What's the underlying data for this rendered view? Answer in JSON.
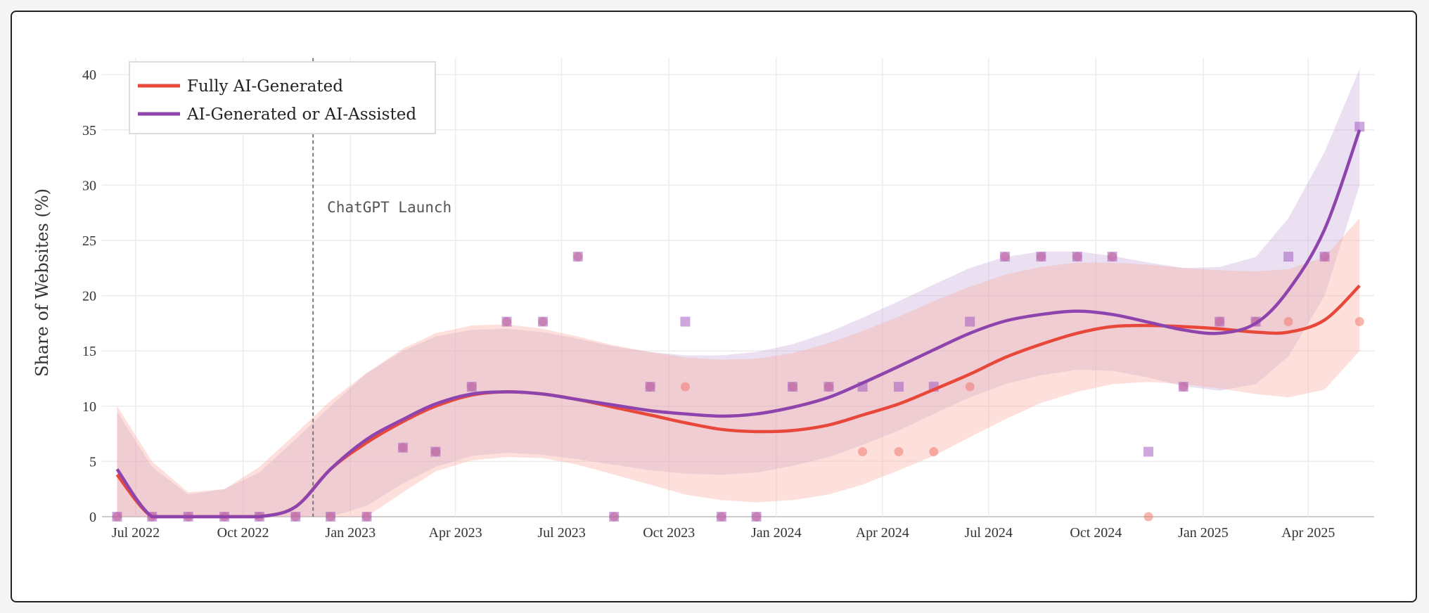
{
  "chart_data": {
    "type": "line",
    "xlabel": "",
    "ylabel": "Share of Websites (%)",
    "ylim": [
      0,
      42
    ],
    "yticks": [
      "0",
      "5",
      "10",
      "15",
      "20",
      "25",
      "30",
      "35",
      "40"
    ],
    "xticks": [
      {
        "date": "2022-07-01",
        "label": "Jul 2022"
      },
      {
        "date": "2022-10-01",
        "label": "Oct 2022"
      },
      {
        "date": "2023-01-01",
        "label": "Jan 2023"
      },
      {
        "date": "2023-04-01",
        "label": "Apr 2023"
      },
      {
        "date": "2023-07-01",
        "label": "Jul 2023"
      },
      {
        "date": "2023-10-01",
        "label": "Oct 2023"
      },
      {
        "date": "2024-01-01",
        "label": "Jan 2024"
      },
      {
        "date": "2024-04-01",
        "label": "Apr 2024"
      },
      {
        "date": "2024-07-01",
        "label": "Jul 2024"
      },
      {
        "date": "2024-10-01",
        "label": "Oct 2024"
      },
      {
        "date": "2025-01-01",
        "label": "Jan 2025"
      },
      {
        "date": "2025-04-01",
        "label": "Apr 2025"
      }
    ],
    "xlim": [
      "2022-06-01",
      "2025-06-15"
    ],
    "grid": true,
    "legend_position": "top-left",
    "annotation": {
      "date": "2022-11-30",
      "label": "ChatGPT Launch",
      "style": "dashed vertical line"
    },
    "x": [
      "2022-06-15",
      "2022-07-15",
      "2022-08-15",
      "2022-09-15",
      "2022-10-15",
      "2022-11-15",
      "2022-12-15",
      "2023-01-15",
      "2023-02-15",
      "2023-03-15",
      "2023-04-15",
      "2023-05-15",
      "2023-06-15",
      "2023-07-15",
      "2023-08-15",
      "2023-09-15",
      "2023-10-15",
      "2023-11-15",
      "2023-12-15",
      "2024-01-15",
      "2024-02-15",
      "2024-03-15",
      "2024-04-15",
      "2024-05-15",
      "2024-06-15",
      "2024-07-15",
      "2024-08-15",
      "2024-09-15",
      "2024-10-15",
      "2024-11-15",
      "2024-12-15",
      "2025-01-15",
      "2025-02-15",
      "2025-03-15",
      "2025-04-15",
      "2025-05-15"
    ],
    "series": [
      {
        "name": "Fully AI-Generated",
        "color": "#e8483a",
        "marker": "circle",
        "points": [
          0,
          0,
          0,
          0,
          0,
          0,
          0,
          0,
          6.25,
          5.88,
          11.76,
          17.65,
          17.65,
          23.53,
          0,
          11.76,
          11.76,
          0,
          0,
          11.76,
          11.76,
          5.88,
          5.88,
          5.88,
          11.76,
          23.53,
          23.53,
          23.53,
          23.53,
          0,
          11.76,
          17.65,
          17.65,
          17.65,
          23.53,
          17.65
        ],
        "trend": [
          3.8,
          0,
          0,
          0,
          0,
          0.9,
          4.3,
          6.7,
          8.6,
          10.0,
          11.0,
          11.3,
          11.1,
          10.6,
          9.9,
          9.2,
          8.5,
          7.9,
          7.7,
          7.8,
          8.3,
          9.2,
          10.2,
          11.5,
          12.9,
          14.4,
          15.6,
          16.6,
          17.2,
          17.3,
          17.2,
          17.0,
          16.7,
          16.7,
          17.8,
          20.9
        ],
        "band_lower": [
          0,
          0,
          0,
          0,
          0,
          0,
          0,
          0,
          2.2,
          4.1,
          5.1,
          5.4,
          5.3,
          4.7,
          3.8,
          2.9,
          2.0,
          1.5,
          1.3,
          1.5,
          2.0,
          2.9,
          4.2,
          5.5,
          7.2,
          8.8,
          10.3,
          11.3,
          12.0,
          12.2,
          12.0,
          11.6,
          11.1,
          10.8,
          11.5,
          15.0
        ],
        "band_upper": [
          10,
          5,
          2.2,
          2.5,
          4.5,
          7.5,
          10.5,
          13.0,
          15.2,
          16.6,
          17.3,
          17.4,
          17.0,
          16.3,
          15.5,
          14.9,
          14.4,
          14.2,
          14.3,
          14.8,
          15.7,
          16.8,
          18.1,
          19.5,
          20.8,
          21.9,
          22.6,
          23.0,
          23.0,
          22.8,
          22.5,
          22.3,
          22.2,
          22.4,
          23.5,
          27.0
        ]
      },
      {
        "name": "AI-Generated or AI-Assisted",
        "color": "#8e44ad",
        "marker": "square",
        "points": [
          0,
          0,
          0,
          0,
          0,
          0,
          0,
          0,
          6.25,
          5.88,
          11.76,
          17.65,
          17.65,
          23.53,
          0,
          11.76,
          17.65,
          0,
          0,
          11.76,
          11.76,
          11.76,
          11.76,
          11.76,
          17.65,
          23.53,
          23.53,
          23.53,
          23.53,
          5.88,
          11.76,
          17.65,
          17.65,
          23.53,
          23.53,
          35.29
        ],
        "trend": [
          4.3,
          0,
          0,
          0,
          0,
          0.9,
          4.3,
          7.0,
          8.8,
          10.2,
          11.1,
          11.3,
          11.1,
          10.6,
          10.1,
          9.6,
          9.3,
          9.1,
          9.3,
          9.9,
          10.8,
          12.1,
          13.6,
          15.1,
          16.6,
          17.7,
          18.3,
          18.6,
          18.3,
          17.6,
          16.9,
          16.6,
          17.5,
          20.5,
          26.0,
          35.0
        ],
        "band_lower": [
          0,
          0,
          0,
          0,
          0,
          0,
          0,
          1.0,
          3.0,
          4.5,
          5.5,
          5.8,
          5.6,
          5.2,
          4.7,
          4.2,
          3.9,
          3.8,
          4.0,
          4.6,
          5.4,
          6.5,
          7.8,
          9.3,
          10.8,
          12.0,
          12.8,
          13.3,
          13.2,
          12.6,
          11.8,
          11.4,
          12.0,
          14.5,
          20.0,
          30.0
        ],
        "band_upper": [
          9.5,
          4.5,
          2,
          2.5,
          4,
          7,
          10,
          13,
          15,
          16.3,
          16.9,
          17.0,
          16.7,
          16.1,
          15.4,
          14.9,
          14.6,
          14.6,
          14.9,
          15.6,
          16.7,
          18.0,
          19.5,
          21,
          22.5,
          23.5,
          24,
          24,
          23.6,
          23,
          22.5,
          22.6,
          23.5,
          27,
          33,
          40.5
        ]
      }
    ]
  }
}
